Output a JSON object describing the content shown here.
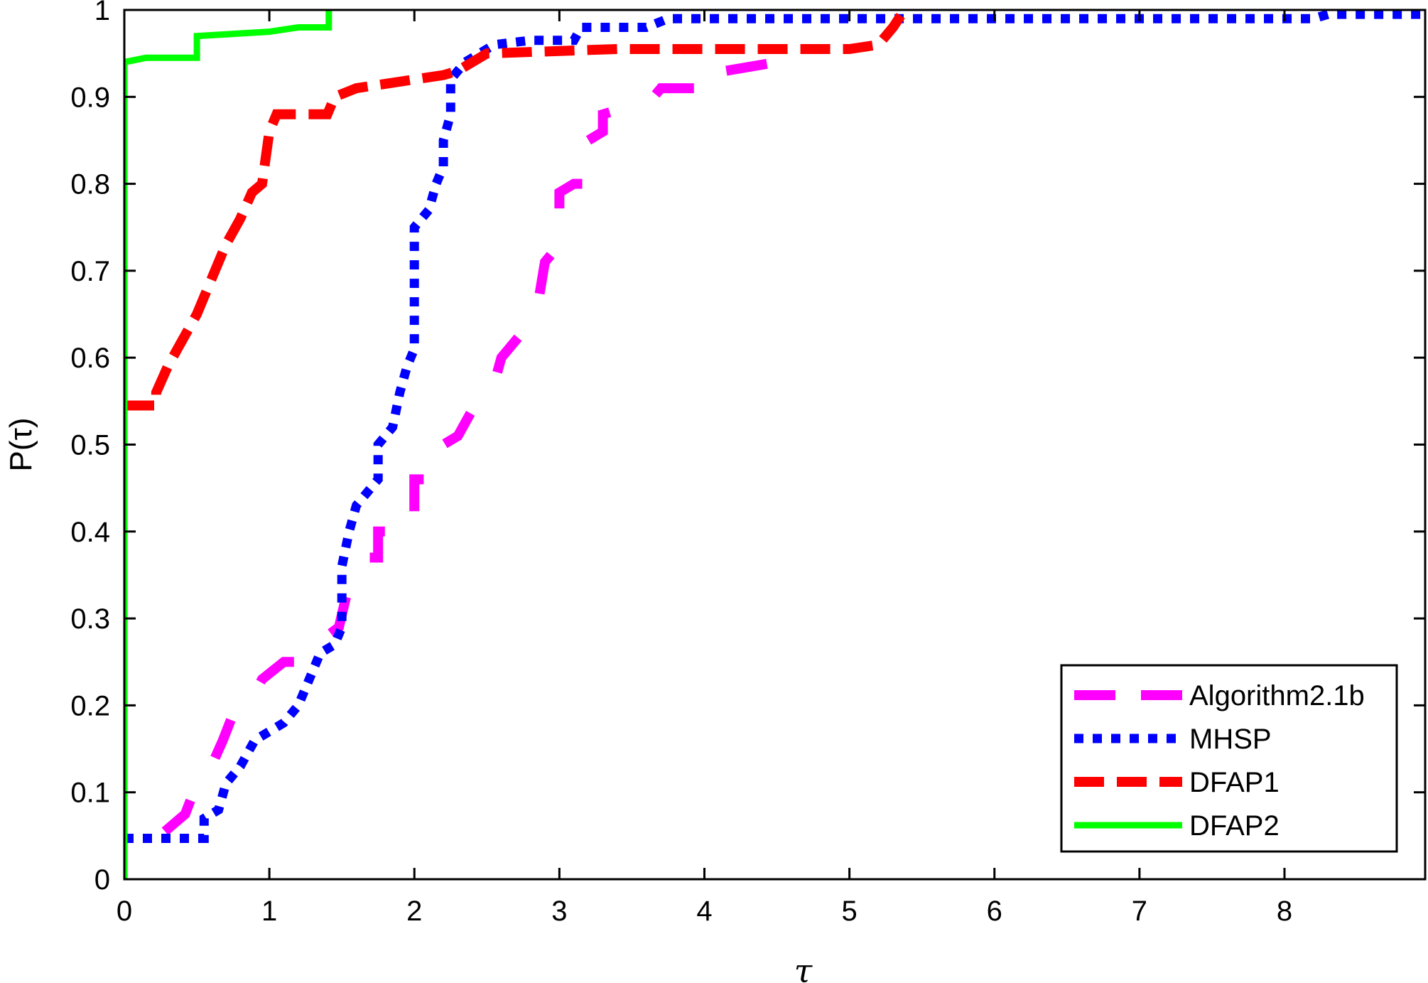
{
  "chart_data": {
    "type": "line",
    "xlabel": "τ",
    "ylabel": "P(τ)",
    "xlim": [
      0,
      8.97
    ],
    "ylim": [
      0,
      1
    ],
    "xticks": [
      "0",
      "1",
      "2",
      "3",
      "4",
      "5",
      "6",
      "7",
      "8"
    ],
    "yticks": [
      "0",
      "0.1",
      "0.2",
      "0.3",
      "0.4",
      "0.5",
      "0.6",
      "0.7",
      "0.8",
      "0.9",
      "1"
    ],
    "grid": false,
    "legend_position": "bottom-right",
    "series": [
      {
        "name": "Algorithm2.1b",
        "color": "#ff00ff",
        "style": "dash-long",
        "points": [
          [
            0.28,
            0.055
          ],
          [
            0.35,
            0.065
          ],
          [
            0.42,
            0.075
          ],
          [
            0.5,
            0.11
          ],
          [
            0.6,
            0.13
          ],
          [
            0.68,
            0.16
          ],
          [
            0.75,
            0.19
          ],
          [
            0.85,
            0.2
          ],
          [
            0.95,
            0.23
          ],
          [
            1.1,
            0.25
          ],
          [
            1.25,
            0.25
          ],
          [
            1.4,
            0.28
          ],
          [
            1.48,
            0.29
          ],
          [
            1.55,
            0.34
          ],
          [
            1.65,
            0.37
          ],
          [
            1.75,
            0.37
          ],
          [
            1.75,
            0.4
          ],
          [
            2.0,
            0.4
          ],
          [
            2.0,
            0.46
          ],
          [
            2.1,
            0.46
          ],
          [
            2.1,
            0.49
          ],
          [
            2.3,
            0.51
          ],
          [
            2.4,
            0.54
          ],
          [
            2.55,
            0.57
          ],
          [
            2.6,
            0.6
          ],
          [
            2.75,
            0.63
          ],
          [
            2.85,
            0.66
          ],
          [
            2.9,
            0.71
          ],
          [
            3.0,
            0.73
          ],
          [
            3.0,
            0.79
          ],
          [
            3.1,
            0.8
          ],
          [
            3.2,
            0.8
          ],
          [
            3.2,
            0.85
          ],
          [
            3.3,
            0.86
          ],
          [
            3.3,
            0.88
          ],
          [
            3.5,
            0.89
          ],
          [
            3.65,
            0.9
          ],
          [
            3.7,
            0.91
          ],
          [
            4.05,
            0.91
          ],
          [
            4.05,
            0.93
          ],
          [
            4.15,
            0.93
          ],
          [
            4.5,
            0.94
          ],
          [
            4.5,
            0.95
          ],
          [
            4.55,
            0.96
          ]
        ]
      },
      {
        "name": "MHSP",
        "color": "#0000ff",
        "style": "dotted",
        "points": [
          [
            0.0,
            0.047
          ],
          [
            0.55,
            0.047
          ],
          [
            0.55,
            0.07
          ],
          [
            0.65,
            0.08
          ],
          [
            0.7,
            0.11
          ],
          [
            0.8,
            0.13
          ],
          [
            0.9,
            0.16
          ],
          [
            1.0,
            0.17
          ],
          [
            1.1,
            0.18
          ],
          [
            1.2,
            0.2
          ],
          [
            1.3,
            0.24
          ],
          [
            1.35,
            0.26
          ],
          [
            1.45,
            0.27
          ],
          [
            1.5,
            0.29
          ],
          [
            1.5,
            0.36
          ],
          [
            1.55,
            0.4
          ],
          [
            1.6,
            0.43
          ],
          [
            1.7,
            0.45
          ],
          [
            1.75,
            0.46
          ],
          [
            1.75,
            0.5
          ],
          [
            1.85,
            0.52
          ],
          [
            1.9,
            0.56
          ],
          [
            1.95,
            0.59
          ],
          [
            2.0,
            0.61
          ],
          [
            2.0,
            0.75
          ],
          [
            2.1,
            0.77
          ],
          [
            2.15,
            0.8
          ],
          [
            2.2,
            0.82
          ],
          [
            2.2,
            0.85
          ],
          [
            2.25,
            0.88
          ],
          [
            2.25,
            0.92
          ],
          [
            2.35,
            0.94
          ],
          [
            2.45,
            0.95
          ],
          [
            2.55,
            0.96
          ],
          [
            2.8,
            0.965
          ],
          [
            3.1,
            0.965
          ],
          [
            3.15,
            0.98
          ],
          [
            3.6,
            0.98
          ],
          [
            3.75,
            0.99
          ],
          [
            8.2,
            0.99
          ],
          [
            8.3,
            0.995
          ],
          [
            8.97,
            0.995
          ]
        ]
      },
      {
        "name": "DFAP1",
        "color": "#ff0000",
        "style": "dashed",
        "points": [
          [
            0.0,
            0.545
          ],
          [
            0.22,
            0.545
          ],
          [
            0.22,
            0.56
          ],
          [
            0.3,
            0.59
          ],
          [
            0.4,
            0.62
          ],
          [
            0.5,
            0.65
          ],
          [
            0.55,
            0.67
          ],
          [
            0.6,
            0.69
          ],
          [
            0.7,
            0.73
          ],
          [
            0.8,
            0.76
          ],
          [
            0.88,
            0.79
          ],
          [
            0.95,
            0.8
          ],
          [
            1.0,
            0.86
          ],
          [
            1.05,
            0.88
          ],
          [
            1.4,
            0.88
          ],
          [
            1.45,
            0.9
          ],
          [
            1.6,
            0.91
          ],
          [
            2.0,
            0.92
          ],
          [
            2.2,
            0.925
          ],
          [
            2.3,
            0.93
          ],
          [
            2.5,
            0.95
          ],
          [
            3.4,
            0.955
          ],
          [
            5.0,
            0.955
          ],
          [
            5.2,
            0.96
          ],
          [
            5.3,
            0.98
          ],
          [
            5.38,
            1.0
          ]
        ]
      },
      {
        "name": "DFAP2",
        "color": "#00ff00",
        "style": "solid",
        "points": [
          [
            0.0,
            0.0
          ],
          [
            0.0,
            0.94
          ],
          [
            0.15,
            0.945
          ],
          [
            0.5,
            0.945
          ],
          [
            0.5,
            0.97
          ],
          [
            1.0,
            0.975
          ],
          [
            1.2,
            0.98
          ],
          [
            1.41,
            0.98
          ],
          [
            1.41,
            1.0
          ]
        ]
      }
    ]
  }
}
